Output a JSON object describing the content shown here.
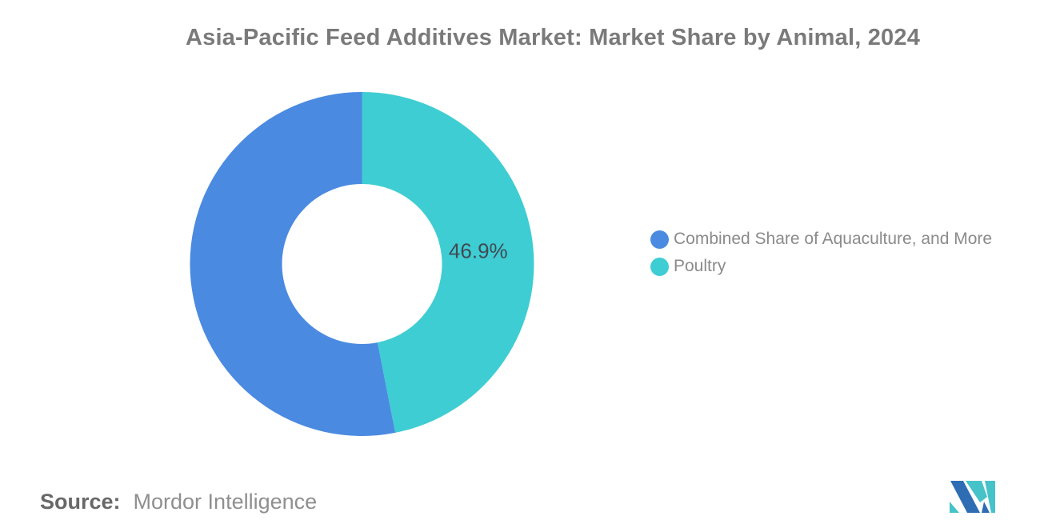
{
  "title": "Asia-Pacific Feed Additives Market: Market Share by Animal, 2024",
  "source": {
    "label": "Source:",
    "value": "Mordor Intelligence"
  },
  "colors": {
    "title_text": "#7a7a7a",
    "legend_text": "#8b8b8b",
    "slice_label_text": "#404a52",
    "background": "#ffffff"
  },
  "logo": {
    "name": "Mordor Intelligence",
    "navy": "#2e6db4",
    "teal": "#46c2c9"
  },
  "chart_data": {
    "type": "pie",
    "subtype": "donut",
    "title": "Asia-Pacific Feed Additives Market: Market Share by Animal, 2024",
    "unit": "%",
    "series": [
      {
        "name": "Combined Share of Aquaculture, and More",
        "value": 53.1,
        "color": "#4a8ae1",
        "label": null
      },
      {
        "name": "Poultry",
        "value": 46.9,
        "color": "#3ecdd3",
        "label": "46.9%"
      }
    ],
    "start": {
      "angle_deg": 0,
      "direction": "clockwise",
      "first_slice": "Poultry"
    },
    "legend_position": "right",
    "grid": false
  }
}
